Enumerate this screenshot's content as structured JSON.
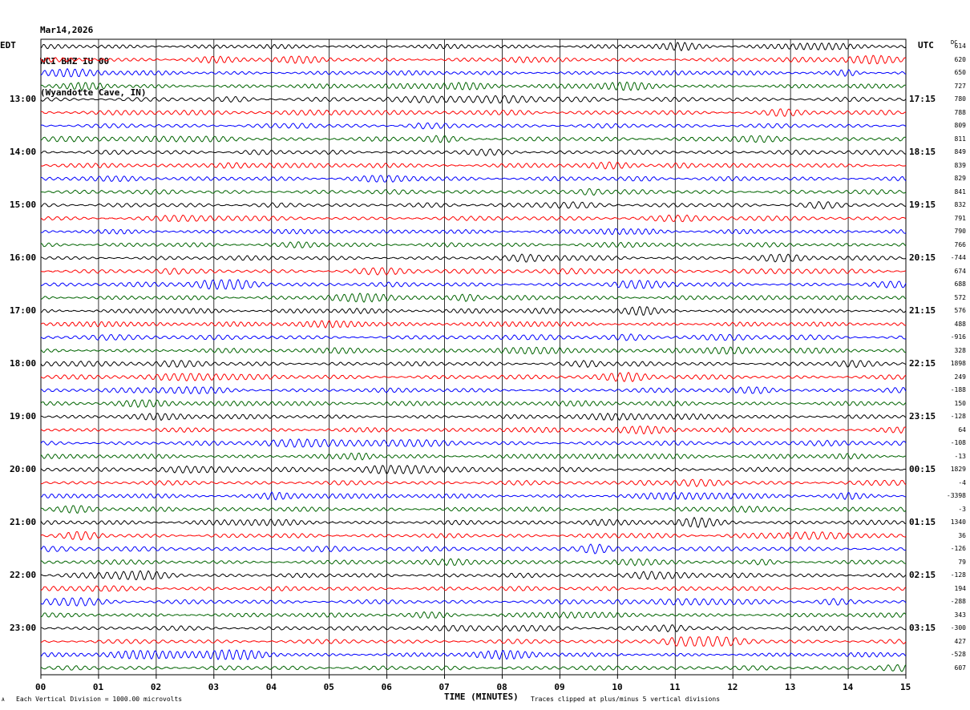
{
  "header": {
    "date": "Mar14,2026",
    "station": "WCI BHZ IU 00",
    "location": "(Wyandotte Cave, IN)"
  },
  "left_zone": "EDT",
  "right_zone": "UTC",
  "dc_label": "DC",
  "footer": {
    "scale_note": "Each Vertical Division = 1000.00 microvolts",
    "clip_note": "Traces clipped at plus/minus 5 vertical divisions",
    "corner_mark": "A"
  },
  "chart_data": {
    "type": "line",
    "title": "",
    "xlabel": "TIME (MINUTES)",
    "ylabel": "",
    "xlim": [
      0,
      15
    ],
    "x_tick_labels": [
      "00",
      "01",
      "02",
      "03",
      "04",
      "05",
      "06",
      "07",
      "08",
      "09",
      "10",
      "11",
      "12",
      "13",
      "14",
      "15"
    ],
    "grid": true,
    "trace_colors": [
      "#000000",
      "#ff0000",
      "#0000ff",
      "#006400"
    ],
    "left_hour_labels": [
      "13:00",
      "14:00",
      "15:00",
      "16:00",
      "17:00",
      "18:00",
      "19:00",
      "20:00",
      "21:00",
      "22:00",
      "23:00"
    ],
    "right_hour_labels": [
      "17:15",
      "18:15",
      "19:15",
      "20:15",
      "21:15",
      "22:15",
      "23:15",
      "00:15",
      "01:15",
      "02:15",
      "03:15"
    ],
    "dc_offsets": [
      "614",
      "620",
      "650",
      "727",
      "780",
      "788",
      "809",
      "811",
      "849",
      "839",
      "829",
      "841",
      "832",
      "791",
      "790",
      "766",
      "-744",
      "674",
      "688",
      "572",
      "576",
      "488",
      "-916",
      "328",
      "1898",
      "249",
      "-188",
      "150",
      "-128",
      "64",
      "-108",
      "-13",
      "1829",
      "-4",
      "-3398",
      "-3",
      "1340",
      "36",
      "-126",
      "79",
      "-128",
      "194",
      "-288",
      "343",
      "-300",
      "427",
      "-528",
      "607"
    ]
  }
}
